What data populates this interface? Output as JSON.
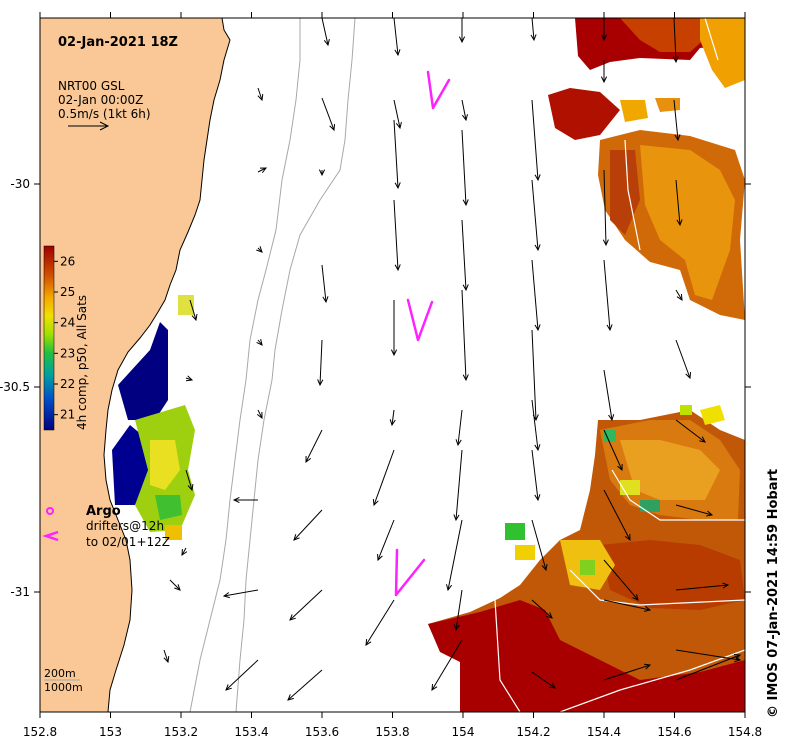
{
  "title": "02-Jan-2021 18Z",
  "velocity_legend": {
    "line1": "NRT00 GSL",
    "line2": "02-Jan 00:00Z",
    "line3": "0.5m/s (1kt 6h)"
  },
  "colorbar": {
    "label": "4h comp, p50, All Sats",
    "min": 20.5,
    "max": 26.5,
    "ticks": [
      "21",
      "22",
      "23",
      "24",
      "25",
      "26"
    ]
  },
  "legend": {
    "argo_label": "Argo",
    "drifters_line1": "drifters@12h",
    "drifters_line2": "to 02/01+12Z"
  },
  "bathy_legend": {
    "line1": "200m",
    "line2": "1000m"
  },
  "credit": "© IMOS 07-Jan-2021 14:59 Hobart",
  "x_axis": {
    "ticks": [
      "152.8",
      "153",
      "153.2",
      "153.4",
      "153.6",
      "153.8",
      "154",
      "154.2",
      "154.4",
      "154.6",
      "154.8"
    ]
  },
  "y_axis": {
    "ticks": [
      "-30",
      "-30.5",
      "-31"
    ]
  },
  "colors": {
    "land": "#f9c896",
    "warm": "#a80000",
    "orange": "#e07a00",
    "drifter": "#ff22ff",
    "bathy": "#a8a8a8"
  }
}
